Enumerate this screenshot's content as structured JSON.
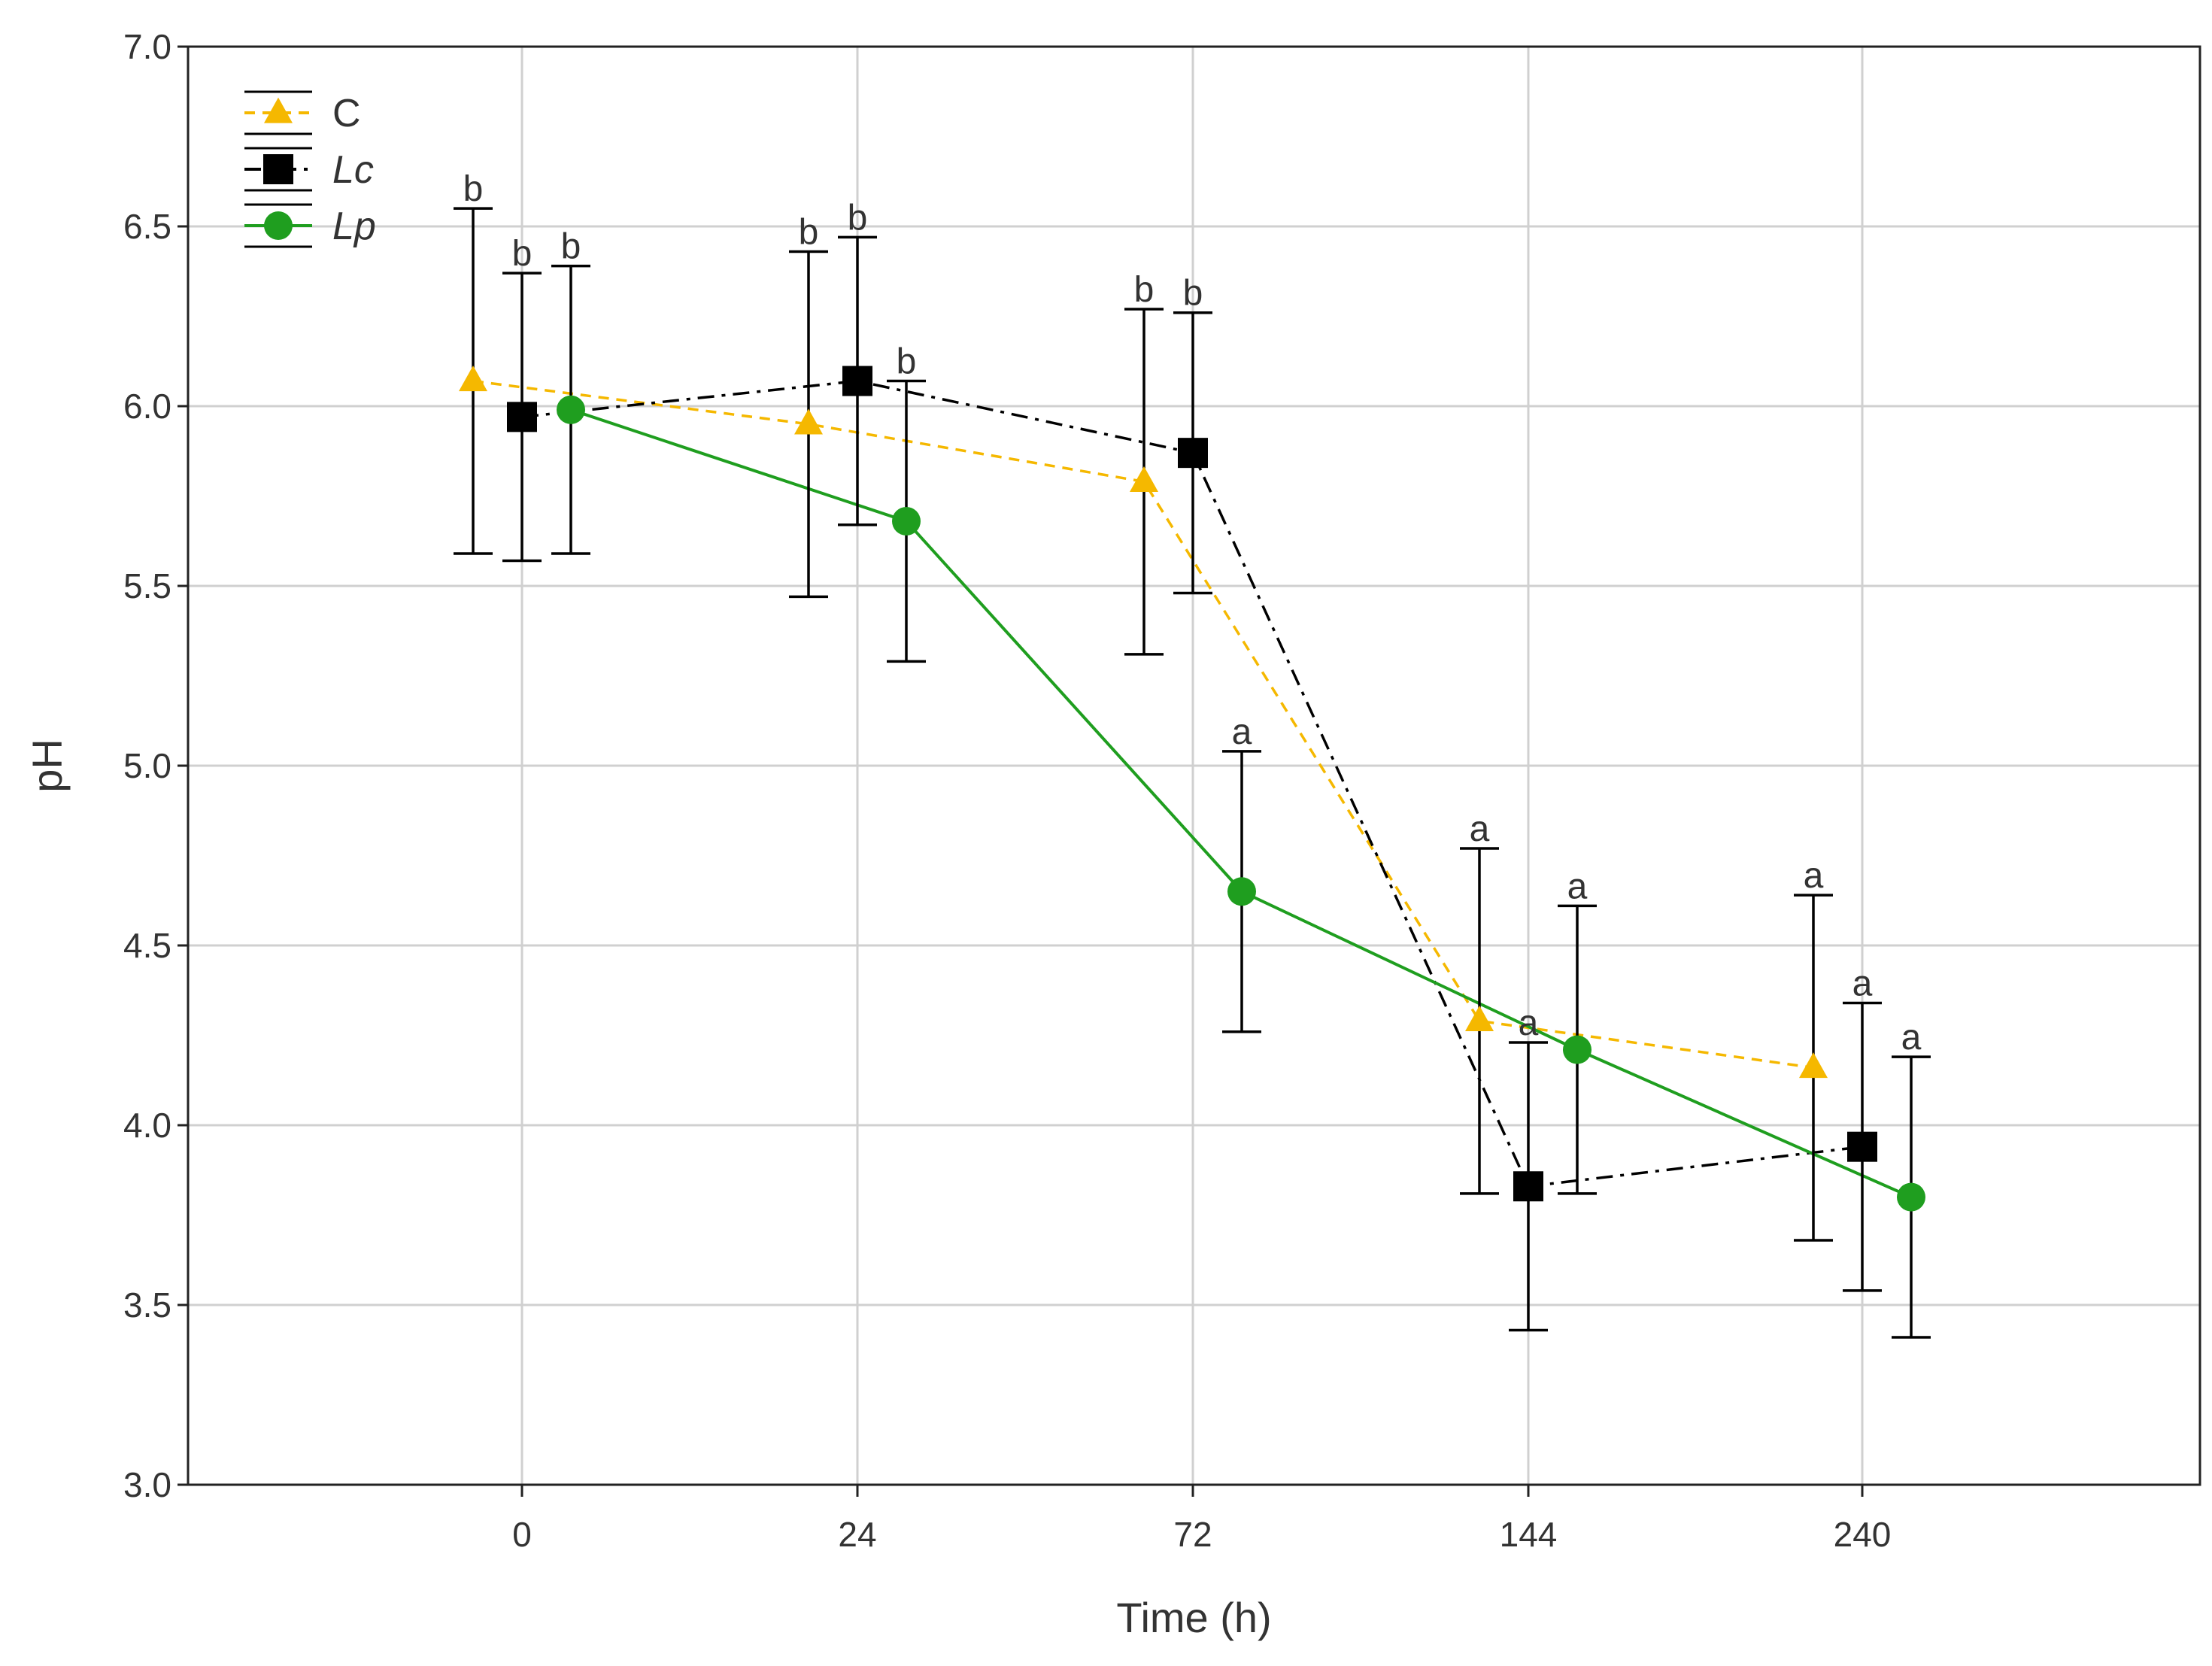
{
  "chart_data": {
    "type": "line",
    "title": "",
    "xlabel": "Time (h)",
    "ylabel": "pH",
    "categories": [
      "0",
      "24",
      "72",
      "144",
      "240"
    ],
    "yticks": [
      "3.0",
      "3.5",
      "4.0",
      "4.5",
      "5.0",
      "5.5",
      "6.0",
      "6.5",
      "7.0"
    ],
    "ylim": [
      3.0,
      7.0
    ],
    "grid": true,
    "legend_position": "top-left",
    "series": [
      {
        "name": "C",
        "italic": false,
        "color": "#f5b800",
        "line_style": "dashed",
        "marker": "triangle",
        "values": [
          6.07,
          5.95,
          5.79,
          4.29,
          4.16
        ],
        "error": [
          0.48,
          0.48,
          0.48,
          0.48,
          0.48
        ],
        "letters": [
          "b",
          "b",
          "b",
          "a",
          "a"
        ]
      },
      {
        "name": "Lc",
        "italic": true,
        "color": "#000000",
        "line_style": "dashdot",
        "marker": "square",
        "values": [
          5.97,
          6.07,
          5.87,
          3.83,
          3.94
        ],
        "error": [
          0.4,
          0.4,
          0.39,
          0.4,
          0.4
        ],
        "letters": [
          "b",
          "b",
          "b",
          "a",
          "a"
        ]
      },
      {
        "name": "Lp",
        "italic": true,
        "color": "#1f9e1f",
        "line_style": "solid",
        "marker": "circle",
        "values": [
          5.99,
          5.68,
          4.65,
          4.21,
          3.8
        ],
        "error": [
          0.4,
          0.39,
          0.39,
          0.4,
          0.39
        ],
        "letters": [
          "b",
          "b",
          "a",
          "a",
          "a"
        ]
      }
    ]
  }
}
